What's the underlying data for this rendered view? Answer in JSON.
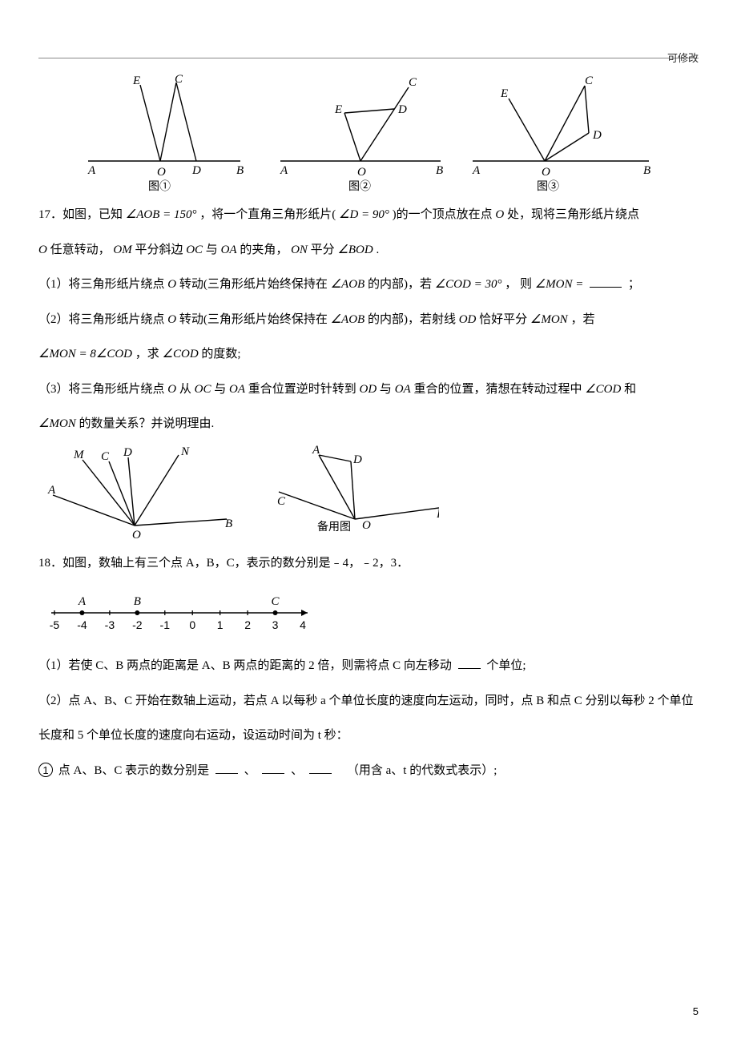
{
  "meta": {
    "top_right_note": "可修改",
    "page_number": "5"
  },
  "figset1": {
    "labels": {
      "A": "A",
      "B": "B",
      "C": "C",
      "D": "D",
      "E": "E",
      "O": "O"
    },
    "captions": {
      "fig1": "图①",
      "fig2": "图②",
      "fig3": "图③"
    },
    "stroke": "#000000",
    "line_width": 1.2
  },
  "q17": {
    "lead": "17．如图，已知 ",
    "expr_AOB": "∠AOB = 150°",
    "lead2": "，将一个直角三角形纸片( ",
    "expr_D": "∠D = 90°",
    "lead3": " )的一个顶点放在点 ",
    "pointO": "O",
    "lead4": " 处，现将三角形纸片绕点 ",
    "line2a": " 任意转动，",
    "om": "OM",
    "line2b": " 平分斜边 ",
    "oc": "OC",
    "line2c": " 与 ",
    "oa": "OA",
    "line2d": " 的夹角，",
    "on": "ON",
    "line2e": " 平分 ",
    "angle_bod": "∠BOD",
    "line2f": " .",
    "p1_a": "（1）将三角形纸片绕点",
    "p1_b": "转动(三角形纸片始终保持在 ",
    "angle_aob": "∠AOB",
    "p1_c": " 的内部)，若 ",
    "expr_cod30": "∠COD = 30°",
    "p1_d": "， 则 ",
    "expr_mon_eq": "∠MON =",
    "p1_e": "；",
    "p2_a": "（2）将三角形纸片绕点",
    "p2_b": "转动(三角形纸片始终保持在 ",
    "p2_c": " 的内部)，若射线 ",
    "od": "OD",
    "p2_d": " 恰好平分 ",
    "angle_mon": "∠MON",
    "p2_e": " ，若",
    "p2_expr": "∠MON = 8∠COD",
    "p2_f": "，求 ",
    "angle_cod": "∠COD",
    "p2_g": " 的度数;",
    "p3_a": "（3）将三角形纸片绕点",
    "p3_b": " 从 ",
    "p3_c": " 与 ",
    "p3_d": " 重合位置逆时针转到 ",
    "p3_e": " 重合的位置，猜想在转动过程中 ",
    "p3_f": " 和",
    "p3_g": " 的数量关系？并说明理由."
  },
  "figset2": {
    "labels": {
      "A": "A",
      "B": "B",
      "C": "C",
      "D": "D",
      "M": "M",
      "N": "N",
      "O": "O"
    },
    "caption_backup": "备用图",
    "stroke": "#000000",
    "line_width": 1.2
  },
  "q18": {
    "lead": "18．如图，数轴上有三个点 A，B，C，表示的数分别是﹣4，﹣2，3．",
    "p1": "（1）若使 C、B 两点的距离是 A、B 两点的距离的 2 倍，则需将点 C 向左移动",
    "p1_tail": "个单位;",
    "p2": "（2）点 A、B、C 开始在数轴上运动，若点 A 以每秒 a 个单位长度的速度向左运动，同时，点 B 和点 C 分别以每秒 2 个单位长度和 5 个单位长度的速度向右运动，设运动时间为 t 秒：",
    "p3_a": "点 A、B、C 表示的数分别是",
    "p3_sep": "、",
    "p3_tail": "（用含 a、t 的代数式表示）;",
    "circled1": "1"
  },
  "numberline": {
    "min": -5,
    "max": 4,
    "ticks": [
      -5,
      -4,
      -3,
      -2,
      -1,
      0,
      1,
      2,
      3,
      4
    ],
    "points": {
      "A": -4,
      "B": -2,
      "C": 3
    },
    "axis_color": "#000000",
    "tick_len": 6,
    "dot_radius": 3,
    "label_fontsize": 14
  }
}
